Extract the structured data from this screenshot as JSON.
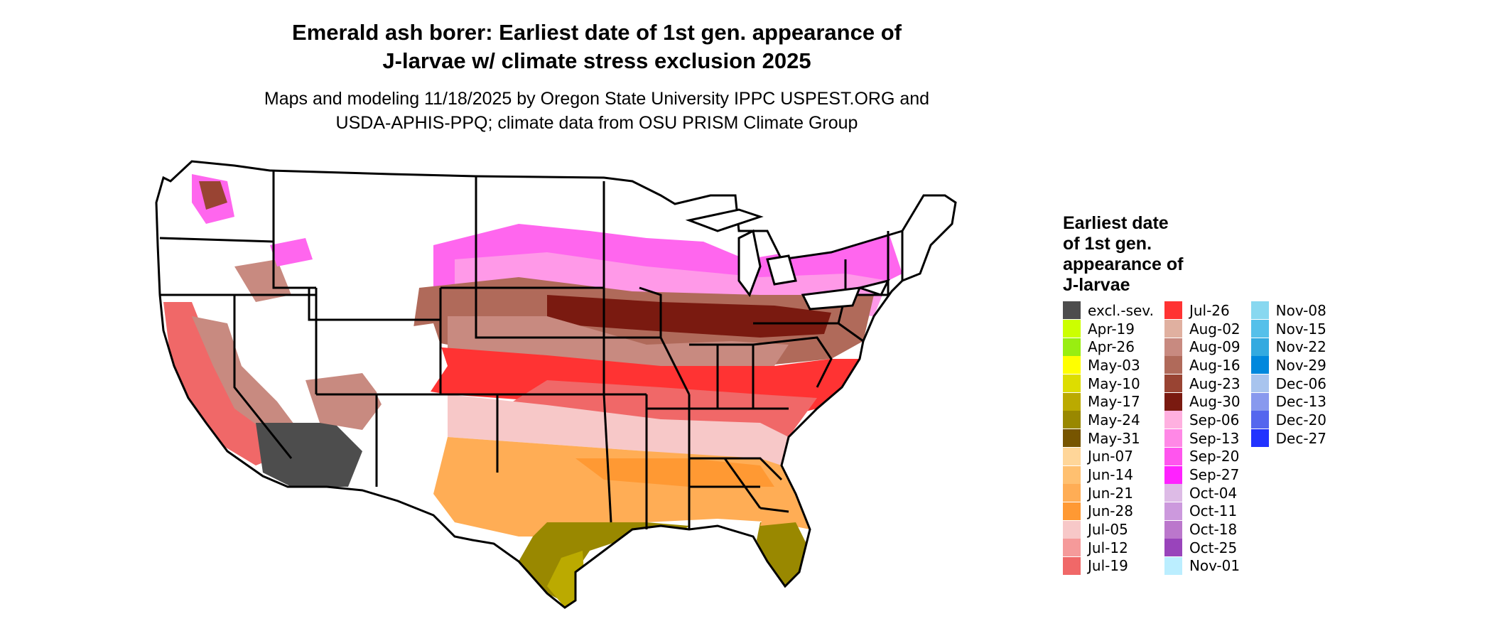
{
  "header": {
    "title_line1": "Emerald ash borer: Earliest date of 1st gen. appearance of",
    "title_line2": "J-larvae w/ climate stress exclusion 2025",
    "subtitle_line1": "Maps and modeling 11/18/2025 by Oregon State University IPPC USPEST.ORG and",
    "subtitle_line2": "USDA-APHIS-PPQ; climate data from OSU PRISM Climate Group"
  },
  "legend": {
    "title_line1": "Earliest date",
    "title_line2": "of 1st gen.",
    "title_line3": "appearance of",
    "title_line4": "J-larvae",
    "columns": [
      [
        {
          "label": "excl.-sev.",
          "color": "#4d4d4d"
        },
        {
          "label": "Apr-19",
          "color": "#ccff00"
        },
        {
          "label": "Apr-26",
          "color": "#99ee11"
        },
        {
          "label": "May-03",
          "color": "#ffff00"
        },
        {
          "label": "May-10",
          "color": "#dddd00"
        },
        {
          "label": "May-17",
          "color": "#bbaa00"
        },
        {
          "label": "May-24",
          "color": "#998800"
        },
        {
          "label": "May-31",
          "color": "#775500"
        },
        {
          "label": "Jun-07",
          "color": "#ffd699"
        },
        {
          "label": "Jun-14",
          "color": "#ffc070"
        },
        {
          "label": "Jun-21",
          "color": "#ffad55"
        },
        {
          "label": "Jun-28",
          "color": "#ff9933"
        },
        {
          "label": "Jul-05",
          "color": "#f7c8c8"
        },
        {
          "label": "Jul-12",
          "color": "#f59a9a"
        },
        {
          "label": "Jul-19",
          "color": "#f06868"
        }
      ],
      [
        {
          "label": "Jul-26",
          "color": "#ff3333"
        },
        {
          "label": "Aug-02",
          "color": "#e0b0a0"
        },
        {
          "label": "Aug-09",
          "color": "#c88a80"
        },
        {
          "label": "Aug-16",
          "color": "#b06a5a"
        },
        {
          "label": "Aug-23",
          "color": "#994433"
        },
        {
          "label": "Aug-30",
          "color": "#7a1a10"
        },
        {
          "label": "Sep-06",
          "color": "#ffb0e0"
        },
        {
          "label": "Sep-13",
          "color": "#ff88e6"
        },
        {
          "label": "Sep-20",
          "color": "#ff55ee"
        },
        {
          "label": "Sep-27",
          "color": "#ff22ff"
        },
        {
          "label": "Oct-04",
          "color": "#ddbbe6"
        },
        {
          "label": "Oct-11",
          "color": "#cc99dd"
        },
        {
          "label": "Oct-18",
          "color": "#bb77cc"
        },
        {
          "label": "Oct-25",
          "color": "#9944bb"
        },
        {
          "label": "Nov-01",
          "color": "#bbeeff"
        }
      ],
      [
        {
          "label": "Nov-08",
          "color": "#88d8f0"
        },
        {
          "label": "Nov-15",
          "color": "#55c0ea"
        },
        {
          "label": "Nov-22",
          "color": "#33aae0"
        },
        {
          "label": "Nov-29",
          "color": "#0088dd"
        },
        {
          "label": "Dec-06",
          "color": "#a8c4ee"
        },
        {
          "label": "Dec-13",
          "color": "#8899ee"
        },
        {
          "label": "Dec-20",
          "color": "#5566ee"
        },
        {
          "label": "Dec-27",
          "color": "#2233ff"
        }
      ]
    ]
  }
}
